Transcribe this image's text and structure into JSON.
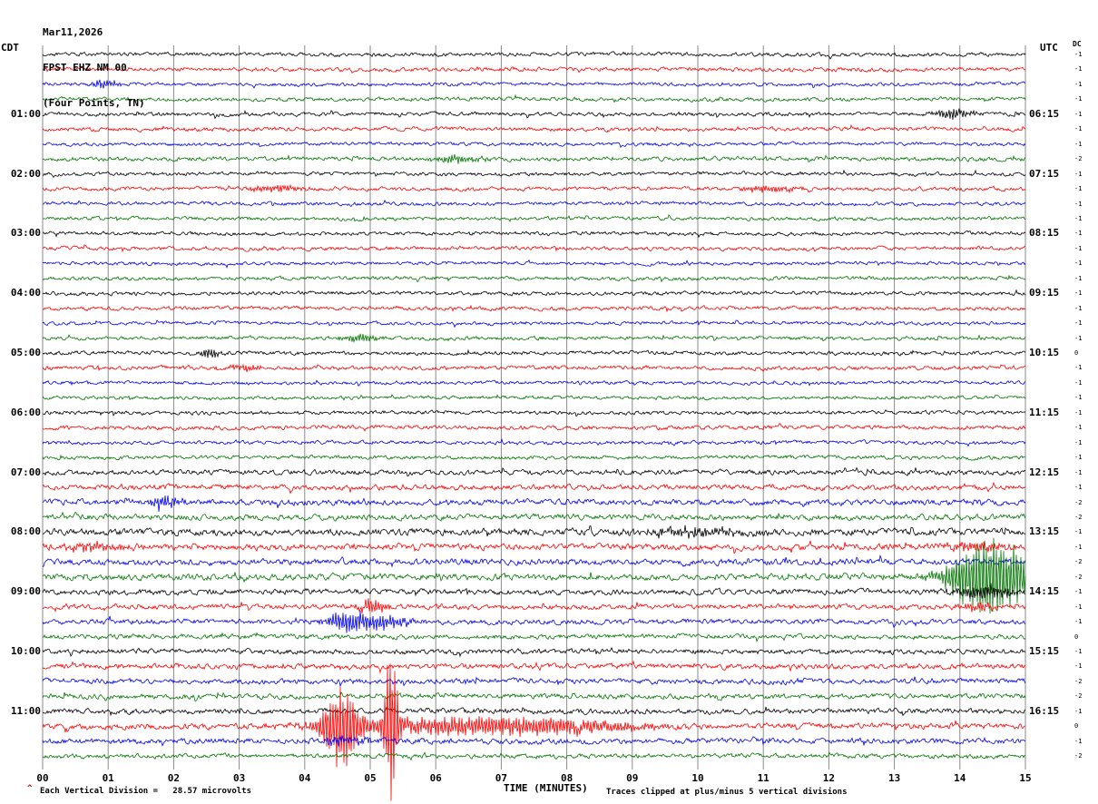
{
  "header": {
    "date": "Mar11,2026",
    "station": "FPST EHZ NM 00",
    "location": "(Four Points, TN)"
  },
  "axes": {
    "left_tz": "CDT",
    "right_tz": "UTC",
    "dc_label": "DC",
    "x_label": "TIME (MINUTES)",
    "x_ticks": [
      "00",
      "01",
      "02",
      "03",
      "04",
      "05",
      "06",
      "07",
      "08",
      "09",
      "10",
      "11",
      "12",
      "13",
      "14",
      "15"
    ]
  },
  "footer": {
    "scale_note": "Each Vertical Division =   28.57 microvolts",
    "clip_note": "Traces clipped at plus/minus 5 vertical divisions",
    "red_mark": "^"
  },
  "chart_data": {
    "type": "line",
    "title": "FPST EHZ NM 00 (Four Points, TN) helicorder - Mar11,2026",
    "xlabel": "TIME (MINUTES)",
    "x_range_minutes": [
      0,
      15
    ],
    "minutes_per_row": 15,
    "clip_divisions": 5,
    "microvolts_per_division": 28.57,
    "trace_colors": [
      "#000000",
      "#ff0000",
      "#0000ee",
      "#007700"
    ],
    "rows": [
      {
        "l": "",
        "r": "",
        "c": 0,
        "dc": "-1",
        "amp": 2.0,
        "ev": []
      },
      {
        "l": "",
        "r": "",
        "c": 1,
        "dc": "-1",
        "amp": 2.1,
        "ev": []
      },
      {
        "l": "",
        "r": "",
        "c": 2,
        "dc": "-1",
        "amp": 1.8,
        "ev": [
          {
            "t": 0.95,
            "w": 0.15,
            "a": 5
          }
        ]
      },
      {
        "l": "",
        "r": "",
        "c": 3,
        "dc": "-1",
        "amp": 2.0,
        "ev": []
      },
      {
        "l": "01:00",
        "r": "06:15",
        "c": 0,
        "dc": "-1",
        "amp": 2.0,
        "ev": [
          {
            "t": 13.9,
            "w": 0.2,
            "a": 6
          }
        ]
      },
      {
        "l": "",
        "r": "",
        "c": 1,
        "dc": "-1",
        "amp": 2.1,
        "ev": []
      },
      {
        "l": "",
        "r": "",
        "c": 2,
        "dc": "-1",
        "amp": 1.8,
        "ev": []
      },
      {
        "l": "",
        "r": "",
        "c": 3,
        "dc": "-2",
        "amp": 2.2,
        "ev": [
          {
            "t": 6.3,
            "w": 0.3,
            "a": 4
          }
        ]
      },
      {
        "l": "02:00",
        "r": "07:15",
        "c": 0,
        "dc": "-1",
        "amp": 1.9,
        "ev": []
      },
      {
        "l": "",
        "r": "",
        "c": 1,
        "dc": "-1",
        "amp": 2.0,
        "ev": [
          {
            "t": 3.5,
            "w": 0.3,
            "a": 4
          },
          {
            "t": 11.1,
            "w": 0.3,
            "a": 4
          }
        ]
      },
      {
        "l": "",
        "r": "",
        "c": 2,
        "dc": "-1",
        "amp": 1.9,
        "ev": []
      },
      {
        "l": "",
        "r": "",
        "c": 3,
        "dc": "-1",
        "amp": 1.9,
        "ev": []
      },
      {
        "l": "03:00",
        "r": "08:15",
        "c": 0,
        "dc": "-1",
        "amp": 1.9,
        "ev": []
      },
      {
        "l": "",
        "r": "",
        "c": 1,
        "dc": "-1",
        "amp": 2.0,
        "ev": []
      },
      {
        "l": "",
        "r": "",
        "c": 2,
        "dc": "-1",
        "amp": 1.8,
        "ev": []
      },
      {
        "l": "",
        "r": "",
        "c": 3,
        "dc": "-1",
        "amp": 1.9,
        "ev": []
      },
      {
        "l": "04:00",
        "r": "09:15",
        "c": 0,
        "dc": "-1",
        "amp": 2.0,
        "ev": []
      },
      {
        "l": "",
        "r": "",
        "c": 1,
        "dc": "-1",
        "amp": 2.0,
        "ev": []
      },
      {
        "l": "",
        "r": "",
        "c": 2,
        "dc": "-1",
        "amp": 1.8,
        "ev": []
      },
      {
        "l": "",
        "r": "",
        "c": 3,
        "dc": "-1",
        "amp": 1.9,
        "ev": [
          {
            "t": 4.85,
            "w": 0.2,
            "a": 5
          }
        ]
      },
      {
        "l": "05:00",
        "r": "10:15",
        "c": 0,
        "dc": "0",
        "amp": 2.0,
        "ev": [
          {
            "t": 2.55,
            "w": 0.12,
            "a": 6
          }
        ]
      },
      {
        "l": "",
        "r": "",
        "c": 1,
        "dc": "-1",
        "amp": 2.1,
        "ev": [
          {
            "t": 3.1,
            "w": 0.2,
            "a": 4
          }
        ]
      },
      {
        "l": "",
        "r": "",
        "c": 2,
        "dc": "-1",
        "amp": 1.8,
        "ev": []
      },
      {
        "l": "",
        "r": "",
        "c": 3,
        "dc": "-1",
        "amp": 1.8,
        "ev": []
      },
      {
        "l": "06:00",
        "r": "11:15",
        "c": 0,
        "dc": "-1",
        "amp": 2.0,
        "ev": []
      },
      {
        "l": "",
        "r": "",
        "c": 1,
        "dc": "-1",
        "amp": 2.2,
        "ev": []
      },
      {
        "l": "",
        "r": "",
        "c": 2,
        "dc": "-1",
        "amp": 1.9,
        "ev": []
      },
      {
        "l": "",
        "r": "",
        "c": 3,
        "dc": "-1",
        "amp": 2.0,
        "ev": []
      },
      {
        "l": "07:00",
        "r": "12:15",
        "c": 0,
        "dc": "-1",
        "amp": 2.6,
        "ev": []
      },
      {
        "l": "",
        "r": "",
        "c": 1,
        "dc": "-1",
        "amp": 2.8,
        "ev": []
      },
      {
        "l": "",
        "r": "",
        "c": 2,
        "dc": "-2",
        "amp": 3.0,
        "ev": [
          {
            "t": 1.85,
            "w": 0.2,
            "a": 7
          }
        ]
      },
      {
        "l": "",
        "r": "",
        "c": 3,
        "dc": "-2",
        "amp": 3.0,
        "ev": []
      },
      {
        "l": "08:00",
        "r": "13:15",
        "c": 0,
        "dc": "-1",
        "amp": 3.6,
        "ev": [
          {
            "t": 9.9,
            "w": 0.6,
            "a": 5
          }
        ]
      },
      {
        "l": "",
        "r": "",
        "c": 1,
        "dc": "-1",
        "amp": 3.3,
        "ev": [
          {
            "t": 0.8,
            "w": 0.3,
            "a": 5
          },
          {
            "t": 14.3,
            "w": 0.3,
            "a": 6
          }
        ]
      },
      {
        "l": "",
        "r": "",
        "c": 2,
        "dc": "-2",
        "amp": 3.2,
        "ev": []
      },
      {
        "l": "",
        "r": "",
        "c": 3,
        "dc": "-2",
        "amp": 3.3,
        "ev": [
          {
            "t": 14.3,
            "w": 0.35,
            "a": 38
          },
          {
            "t": 14.8,
            "w": 0.35,
            "a": 26
          }
        ]
      },
      {
        "l": "09:00",
        "r": "14:15",
        "c": 0,
        "dc": "-1",
        "amp": 2.9,
        "ev": [
          {
            "t": 14.35,
            "w": 0.3,
            "a": 9
          }
        ]
      },
      {
        "l": "",
        "r": "",
        "c": 1,
        "dc": "-1",
        "amp": 2.6,
        "ev": [
          {
            "t": 5.05,
            "w": 0.15,
            "a": 9
          },
          {
            "t": 14.3,
            "w": 0.2,
            "a": 5
          }
        ]
      },
      {
        "l": "",
        "r": "",
        "c": 2,
        "dc": "-1",
        "amp": 2.7,
        "ev": [
          {
            "t": 4.6,
            "w": 0.15,
            "a": 7
          },
          {
            "t": 5.0,
            "w": 0.4,
            "a": 10
          }
        ]
      },
      {
        "l": "",
        "r": "",
        "c": 3,
        "dc": "0",
        "amp": 2.5,
        "ev": []
      },
      {
        "l": "10:00",
        "r": "15:15",
        "c": 0,
        "dc": "-1",
        "amp": 2.6,
        "ev": []
      },
      {
        "l": "",
        "r": "",
        "c": 1,
        "dc": "-1",
        "amp": 2.8,
        "ev": []
      },
      {
        "l": "",
        "r": "",
        "c": 2,
        "dc": "-2",
        "amp": 2.7,
        "ev": []
      },
      {
        "l": "",
        "r": "",
        "c": 3,
        "dc": "-2",
        "amp": 2.7,
        "ev": []
      },
      {
        "l": "11:00",
        "r": "16:15",
        "c": 0,
        "dc": "-1",
        "amp": 2.7,
        "ev": []
      },
      {
        "l": "",
        "r": "",
        "c": 1,
        "dc": "0",
        "amp": 3.0,
        "ev": [
          {
            "t": 4.55,
            "w": 0.2,
            "a": 48
          },
          {
            "t": 5.32,
            "w": 0.07,
            "a": 90
          },
          {
            "t": 6.2,
            "w": 1.2,
            "a": 10
          },
          {
            "t": 8.0,
            "w": 1.0,
            "a": 6
          }
        ]
      },
      {
        "l": "",
        "r": "",
        "c": 2,
        "dc": "-1",
        "amp": 2.8,
        "ev": [
          {
            "t": 4.6,
            "w": 0.3,
            "a": 5
          }
        ]
      },
      {
        "l": "",
        "r": "",
        "c": 3,
        "dc": "-2",
        "amp": 2.4,
        "ev": []
      }
    ]
  }
}
